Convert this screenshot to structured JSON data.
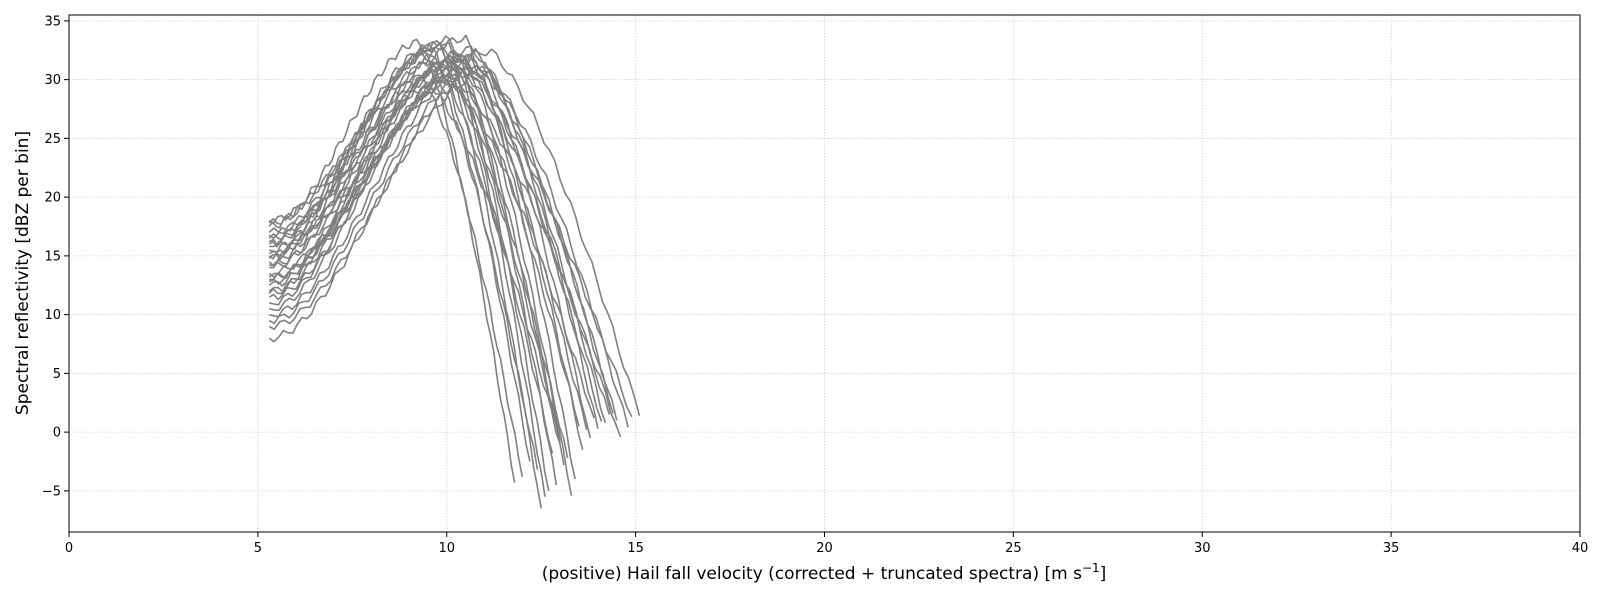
{
  "chart_data": {
    "type": "line",
    "title": "",
    "xlabel": "(positive) Hail fall velocity (corrected + truncated spectra) [m s",
    "xlabel_sup": "−1",
    "xlabel_end": "]",
    "ylabel": "Spectral reflectivity [dBZ per bin]",
    "xlim": [
      0,
      40
    ],
    "ylim": [
      -8.5,
      35.5
    ],
    "xticks": [
      0,
      5,
      10,
      15,
      20,
      25,
      30,
      35,
      40
    ],
    "yticks": [
      -5,
      0,
      5,
      10,
      15,
      20,
      25,
      30,
      35
    ],
    "ytick_labels": [
      "−5",
      "0",
      "5",
      "10",
      "15",
      "20",
      "25",
      "30",
      "35"
    ],
    "grid": true,
    "line_color": "#808080",
    "series_shape": {
      "x_start": 5.3,
      "peak_x": [
        9.3,
        9.6,
        9.8,
        10.0,
        10.1,
        10.2,
        10.4,
        10.5,
        10.6,
        10.8,
        11.0,
        9.5,
        9.9,
        10.3,
        10.7,
        9.7,
        10.1,
        10.5,
        10.9,
        11.2,
        9.4,
        10.0,
        10.6,
        10.2,
        9.8,
        11.1,
        10.4,
        10.8,
        9.6,
        10.3
      ],
      "peak_y": [
        33.2,
        32.8,
        33.0,
        32.5,
        33.4,
        31.8,
        32.2,
        33.5,
        32.0,
        31.5,
        31.0,
        32.0,
        31.2,
        30.8,
        32.6,
        31.6,
        29.8,
        30.5,
        31.0,
        32.4,
        30.0,
        33.2,
        31.4,
        30.2,
        32.8,
        30.6,
        31.9,
        32.3,
        29.5,
        31.7
      ],
      "start_y": [
        17.5,
        16.0,
        15.5,
        14.5,
        18.0,
        13.0,
        12.5,
        16.5,
        11.5,
        10.0,
        8.0,
        15.0,
        14.0,
        12.0,
        17.0,
        16.2,
        11.0,
        13.5,
        9.5,
        15.8,
        14.8,
        17.8,
        12.8,
        10.5,
        16.8,
        9.0,
        14.2,
        13.2,
        11.8,
        15.2
      ],
      "end_x": [
        11.8,
        12.2,
        12.5,
        12.6,
        12.9,
        13.1,
        13.3,
        13.4,
        13.6,
        13.8,
        14.0,
        12.4,
        13.0,
        13.5,
        14.2,
        12.8,
        13.9,
        14.3,
        14.5,
        15.1,
        12.0,
        12.7,
        14.1,
        14.6,
        13.2,
        14.8,
        13.7,
        14.4,
        13.0,
        14.9
      ],
      "end_y": [
        -4.3,
        -2.5,
        -6.5,
        -5.5,
        -4.5,
        -2.8,
        -5.4,
        -4.0,
        -1.5,
        -0.5,
        0.3,
        -3.2,
        -0.8,
        0.5,
        0.8,
        -1.8,
        1.2,
        1.5,
        1.0,
        1.4,
        -3.8,
        -5.0,
        0.9,
        -0.4,
        -2.2,
        0.4,
        0.2,
        1.6,
        -1.0,
        1.3
      ]
    }
  }
}
